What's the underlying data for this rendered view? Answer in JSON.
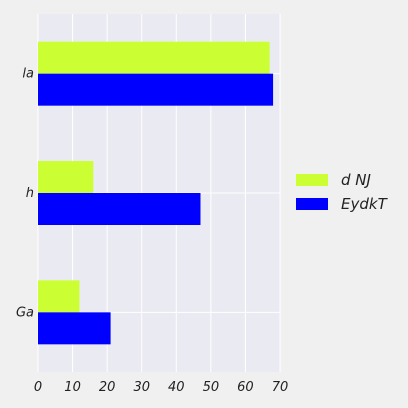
{
  "chart_data": {
    "type": "bar",
    "orientation": "horizontal",
    "categories": [
      "Ga",
      "h",
      "la"
    ],
    "series": [
      {
        "name": "d NJ",
        "values": [
          12,
          16,
          67
        ],
        "color": "#ccff33"
      },
      {
        "name": "EydkT",
        "values": [
          21,
          47,
          68
        ],
        "color": "#0000ff"
      }
    ],
    "xlim": [
      0,
      70
    ],
    "xticks": [
      "0",
      "10",
      "20",
      "30",
      "40",
      "50",
      "60",
      "70"
    ],
    "grid": true,
    "legend_position": "right",
    "plot_background": "#eaeaf2",
    "figure_background": "#f0f0f0"
  }
}
